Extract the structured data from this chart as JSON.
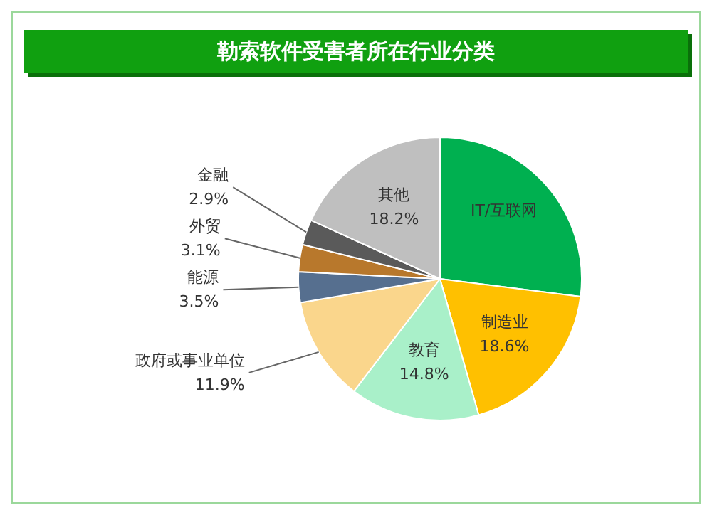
{
  "chart_data": {
    "type": "pie",
    "title": "勒索软件受害者所在行业分类",
    "categories": [
      "IT/互联网",
      "制造业",
      "教育",
      "政府或事业单位",
      "能源",
      "外贸",
      "金融",
      "其他"
    ],
    "values": [
      27.0,
      18.6,
      14.8,
      11.9,
      3.5,
      3.1,
      2.9,
      18.2
    ],
    "value_labels": [
      null,
      "18.6%",
      "14.8%",
      "11.9%",
      "3.5%",
      "3.1%",
      "2.9%",
      "18.2%"
    ],
    "colors": [
      "#00b050",
      "#ffc000",
      "#a9f0c9",
      "#fad68c",
      "#566f8f",
      "#b8782c",
      "#5a5a5a",
      "#bfbfbf"
    ],
    "legend": false
  }
}
